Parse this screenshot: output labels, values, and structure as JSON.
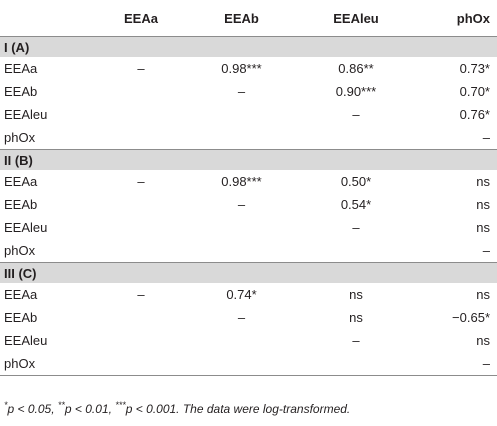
{
  "header": [
    "",
    "EEAa",
    "EEAb",
    "EEAleu",
    "phOx"
  ],
  "sections": [
    {
      "label": "I (A)",
      "rows": [
        [
          "EEAa",
          "–",
          "0.98***",
          "0.86**",
          "0.73*"
        ],
        [
          "EEAb",
          "",
          "–",
          "0.90***",
          "0.70*"
        ],
        [
          "EEAleu",
          "",
          "",
          "–",
          "0.76*"
        ],
        [
          "phOx",
          "",
          "",
          "",
          "–"
        ]
      ]
    },
    {
      "label": "II (B)",
      "rows": [
        [
          "EEAa",
          "–",
          "0.98***",
          "0.50*",
          "ns"
        ],
        [
          "EEAb",
          "",
          "–",
          "0.54*",
          "ns"
        ],
        [
          "EEAleu",
          "",
          "",
          "–",
          "ns"
        ],
        [
          "phOx",
          "",
          "",
          "",
          "–"
        ]
      ]
    },
    {
      "label": "III (C)",
      "rows": [
        [
          "EEAa",
          "–",
          "0.74*",
          "ns",
          "ns"
        ],
        [
          "EEAb",
          "",
          "–",
          "ns",
          "−0.65*"
        ],
        [
          "EEAleu",
          "",
          "",
          "–",
          "ns"
        ],
        [
          "phOx",
          "",
          "",
          "",
          "–"
        ]
      ]
    }
  ],
  "footnote": {
    "s1": "*",
    "t1": "p < 0.05, ",
    "s2": "**",
    "t2": "p < 0.01, ",
    "s3": "***",
    "t3": "p < 0.001. The data were log-transformed."
  }
}
